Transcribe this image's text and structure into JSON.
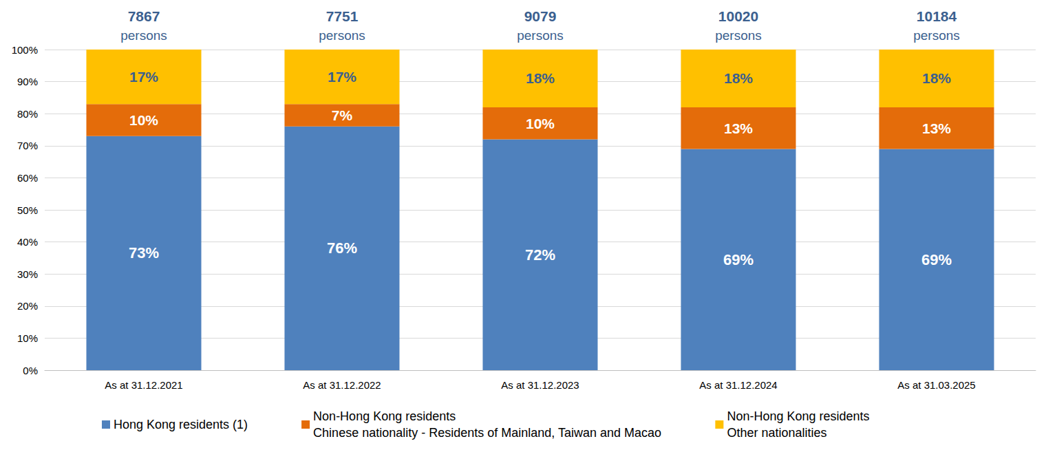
{
  "chart_data": {
    "type": "bar",
    "stacked": true,
    "data_labels": true,
    "grid": true,
    "legend": "bottom",
    "categories": [
      "As at 31.12.2021",
      "As at 31.12.2022",
      "As at 31.12.2023",
      "As at 31.12.2024",
      "As at 31.03.2025"
    ],
    "totals": [
      7867,
      7751,
      9079,
      10020,
      10184
    ],
    "totals_unit": "persons",
    "series": [
      {
        "name": "Hong Kong residents (1)",
        "color": "#4f81bd",
        "values": [
          73,
          76,
          72,
          69,
          69
        ],
        "value_labels": [
          "73%",
          "76%",
          "72%",
          "69%",
          "69%"
        ]
      },
      {
        "name": "Non-Hong Kong residents\nChinese nationality - Residents of Mainland, Taiwan and Macao",
        "color": "#e46c0a",
        "values": [
          10,
          7,
          10,
          13,
          13
        ],
        "value_labels": [
          "10%",
          "7%",
          "10%",
          "13%",
          "13%"
        ]
      },
      {
        "name": "Non-Hong Kong residents\nOther nationalities",
        "color": "#ffc000",
        "values": [
          17,
          17,
          18,
          18,
          18
        ],
        "value_labels": [
          "17%",
          "17%",
          "18%",
          "18%",
          "18%"
        ]
      }
    ],
    "ylim": [
      0,
      100
    ],
    "yticks": [
      {
        "value": 0,
        "label": "0%"
      },
      {
        "value": 10,
        "label": "10%"
      },
      {
        "value": 20,
        "label": "20%"
      },
      {
        "value": 30,
        "label": "30%"
      },
      {
        "value": 40,
        "label": "40%"
      },
      {
        "value": 50,
        "label": "50%"
      },
      {
        "value": 60,
        "label": "60%"
      },
      {
        "value": 70,
        "label": "70%"
      },
      {
        "value": 80,
        "label": "80%"
      },
      {
        "value": 90,
        "label": "90%"
      },
      {
        "value": 100,
        "label": "100%"
      }
    ]
  }
}
